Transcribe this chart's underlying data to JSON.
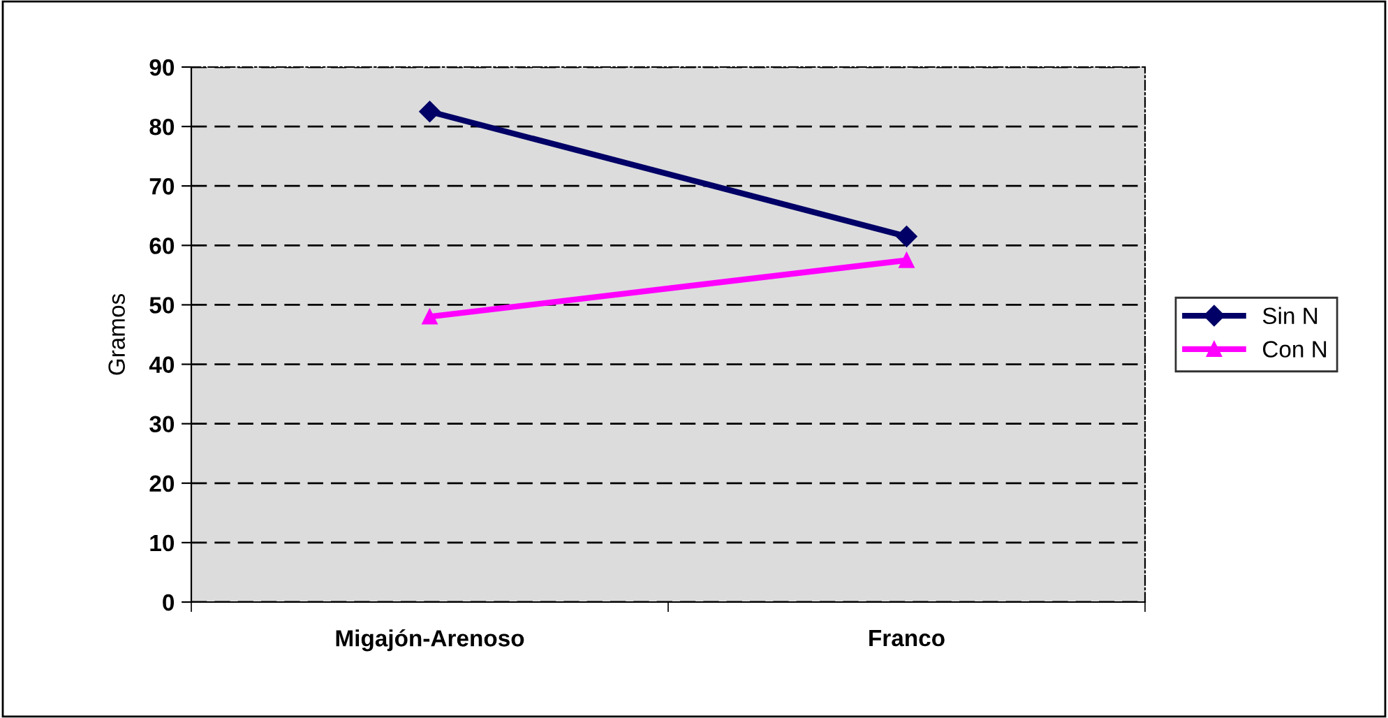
{
  "chart_data": {
    "type": "line",
    "ylabel": "Gramos",
    "categories": [
      "Migajón-Arenoso",
      "Franco"
    ],
    "series": [
      {
        "name": "Sin N",
        "color": "#000066",
        "values": [
          82.5,
          61.5
        ],
        "marker": "diamond"
      },
      {
        "name": "Con N",
        "color": "#ff00ff",
        "values": [
          48,
          57.5
        ],
        "marker": "triangle"
      }
    ],
    "ylim": [
      0,
      90
    ],
    "yticks": [
      0,
      10,
      20,
      30,
      40,
      50,
      60,
      70,
      80,
      90
    ],
    "grid": "y",
    "legend": "right",
    "line_style": "solid"
  }
}
